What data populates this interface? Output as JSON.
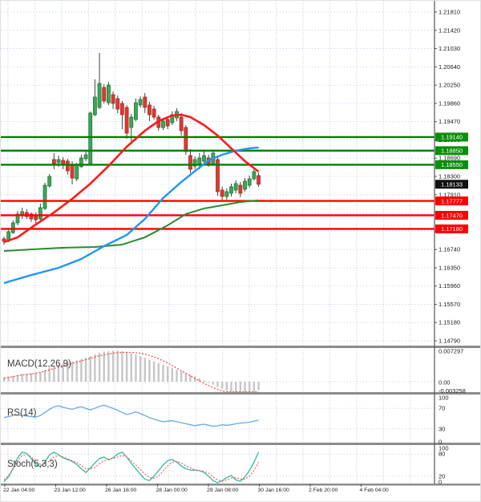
{
  "chart_data": {
    "type": "candlestick",
    "description": "Forex 4h candlestick chart with support/resistance levels, 3 moving averages and MACD / RSI / Stochastic sub-panels",
    "x_axis": {
      "labels": [
        "22 Jan 04:00",
        "23 Jan 12:00",
        "26 Jan 16:00",
        "28 Jan 00:00",
        "29 Jan 08:00",
        "30 Jan 16:00",
        "2 Feb 20:00",
        "4 Feb 04:00"
      ]
    },
    "main_panel": {
      "y_ticks": [
        "1.21810",
        "1.21420",
        "1.21030",
        "1.20640",
        "1.20250",
        "1.19860",
        "1.19470",
        "1.19080",
        "1.18690",
        "1.18300",
        "1.17910",
        "1.17520",
        "1.17130",
        "1.16740",
        "1.16350",
        "1.15960",
        "1.15570",
        "1.15180",
        "1.14790"
      ],
      "price_max": 1.2181,
      "price_min": 1.1479,
      "resistance_levels": [
        "1.19140",
        "1.18850",
        "1.18550"
      ],
      "support_levels": [
        "1.17777",
        "1.17470",
        "1.17180"
      ],
      "last_price": "1.18133",
      "candles_ohlc": [
        [
          1.16965,
          1.17017,
          1.16845,
          1.16914
        ],
        [
          1.16931,
          1.17154,
          1.16897,
          1.17119
        ],
        [
          1.17102,
          1.17359,
          1.17068,
          1.17308
        ],
        [
          1.17308,
          1.17564,
          1.17256,
          1.17496
        ],
        [
          1.17461,
          1.17633,
          1.17393,
          1.17547
        ],
        [
          1.1753,
          1.17598,
          1.17393,
          1.17444
        ],
        [
          1.17496,
          1.1753,
          1.17325,
          1.17393
        ],
        [
          1.17444,
          1.1753,
          1.17291,
          1.17376
        ],
        [
          1.17393,
          1.17718,
          1.17359,
          1.17633
        ],
        [
          1.17616,
          1.18163,
          1.17581,
          1.18112
        ],
        [
          1.18095,
          1.18352,
          1.18061,
          1.183
        ],
        [
          1.1866,
          1.18797,
          1.18454,
          1.18574
        ],
        [
          1.18591,
          1.18745,
          1.18506,
          1.1866
        ],
        [
          1.18643,
          1.18711,
          1.18454,
          1.18557
        ],
        [
          1.18626,
          1.18677,
          1.18335,
          1.1842
        ],
        [
          1.1854,
          1.18626,
          1.18129,
          1.18266
        ],
        [
          1.18249,
          1.18591,
          1.18198,
          1.1854
        ],
        [
          1.18506,
          1.18762,
          1.18489,
          1.18694
        ],
        [
          1.18677,
          1.18831,
          1.18626,
          1.18762
        ],
        [
          1.18574,
          1.19687,
          1.18557,
          1.19653
        ],
        [
          1.19618,
          1.20371,
          1.19584,
          1.19995
        ],
        [
          1.19773,
          1.20937,
          1.19739,
          1.20286
        ],
        [
          1.202,
          1.20269,
          1.19858,
          1.1991
        ],
        [
          1.19875,
          1.2032,
          1.19824,
          1.20252
        ],
        [
          1.20046,
          1.20115,
          1.19738,
          1.19858
        ],
        [
          1.19961,
          1.20029,
          1.19653,
          1.19738
        ],
        [
          1.19858,
          1.1991,
          1.1931,
          1.19618
        ],
        [
          1.19773,
          1.19824,
          1.19105,
          1.19225
        ],
        [
          1.19345,
          1.19636,
          1.19054,
          1.19567
        ],
        [
          1.19516,
          1.19961,
          1.19482,
          1.19875
        ],
        [
          1.19824,
          1.20012,
          1.19773,
          1.19944
        ],
        [
          1.19995,
          1.20081,
          1.19653,
          1.19773
        ],
        [
          1.19824,
          1.19892,
          1.19482,
          1.19618
        ],
        [
          1.19738,
          1.19807,
          1.19516,
          1.19567
        ],
        [
          1.19567,
          1.19618,
          1.19276,
          1.19345
        ],
        [
          1.19345,
          1.1955,
          1.19293,
          1.19482
        ],
        [
          1.19516,
          1.19584,
          1.1931,
          1.19379
        ],
        [
          1.19447,
          1.19687,
          1.19396,
          1.19618
        ],
        [
          1.1955,
          1.19756,
          1.19482,
          1.19687
        ],
        [
          1.19567,
          1.19653,
          1.19173,
          1.19276
        ],
        [
          1.19345,
          1.19396,
          1.18762,
          1.18831
        ],
        [
          1.18745,
          1.18882,
          1.18369,
          1.18454
        ],
        [
          1.18523,
          1.18728,
          1.18454,
          1.1866
        ],
        [
          1.18557,
          1.18797,
          1.18454,
          1.18694
        ],
        [
          1.18626,
          1.18865,
          1.18557,
          1.18745
        ],
        [
          1.18694,
          1.18762,
          1.18506,
          1.18574
        ],
        [
          1.18574,
          1.18865,
          1.18523,
          1.18797
        ],
        [
          1.1866,
          1.18728,
          1.17889,
          1.17975
        ],
        [
          1.18009,
          1.18078,
          1.1777,
          1.17872
        ],
        [
          1.17872,
          1.18044,
          1.17804,
          1.17975
        ],
        [
          1.17941,
          1.18146,
          1.17872,
          1.18078
        ],
        [
          1.18009,
          1.18215,
          1.17941,
          1.18146
        ],
        [
          1.18112,
          1.18181,
          1.17855,
          1.17941
        ],
        [
          1.18026,
          1.18266,
          1.17975,
          1.18198
        ],
        [
          1.18112,
          1.18318,
          1.18061,
          1.18249
        ],
        [
          1.18249,
          1.18489,
          1.18215,
          1.18403
        ],
        [
          1.18318,
          1.18386,
          1.18078,
          1.18133
        ]
      ],
      "ma_red_keypoints": [
        [
          0,
          1.16897
        ],
        [
          3,
          1.17
        ],
        [
          7,
          1.17273
        ],
        [
          11,
          1.1753
        ],
        [
          15,
          1.17821
        ],
        [
          19,
          1.18146
        ],
        [
          23,
          1.18523
        ],
        [
          27,
          1.18934
        ],
        [
          31,
          1.19276
        ],
        [
          34,
          1.19482
        ],
        [
          37,
          1.19601
        ],
        [
          39,
          1.19618
        ],
        [
          41,
          1.19567
        ],
        [
          44,
          1.19396
        ],
        [
          47,
          1.19173
        ],
        [
          50,
          1.18899
        ],
        [
          53,
          1.18626
        ],
        [
          56,
          1.18403
        ]
      ],
      "ma_blue_keypoints": [
        [
          0,
          1.16023
        ],
        [
          6,
          1.16194
        ],
        [
          12,
          1.16348
        ],
        [
          17,
          1.16537
        ],
        [
          22,
          1.16811
        ],
        [
          27,
          1.1705
        ],
        [
          31,
          1.17393
        ],
        [
          35,
          1.17838
        ],
        [
          39,
          1.18181
        ],
        [
          43,
          1.18489
        ],
        [
          45,
          1.18643
        ],
        [
          48,
          1.18763
        ],
        [
          51,
          1.18848
        ],
        [
          54,
          1.189
        ],
        [
          56,
          1.18917
        ]
      ],
      "ma_green_keypoints": [
        [
          0,
          1.16708
        ],
        [
          6,
          1.16742
        ],
        [
          13,
          1.16777
        ],
        [
          20,
          1.16794
        ],
        [
          26,
          1.16845
        ],
        [
          31,
          1.17
        ],
        [
          36,
          1.17256
        ],
        [
          40,
          1.17496
        ],
        [
          44,
          1.17616
        ],
        [
          49,
          1.17701
        ],
        [
          52,
          1.17753
        ],
        [
          56,
          1.1779
        ]
      ]
    },
    "macd_panel": {
      "label": "MACD(12,26,9)",
      "axis_labels": [
        "0.007297",
        "0.00",
        "-0.003258"
      ],
      "histogram": [
        0.001,
        0.0012,
        0.0014,
        0.0016,
        0.0018,
        0.0019,
        0.002,
        0.0021,
        0.0023,
        0.0027,
        0.0032,
        0.0036,
        0.004,
        0.0043,
        0.0046,
        0.0048,
        0.005,
        0.0053,
        0.0056,
        0.006,
        0.0064,
        0.0068,
        0.0071,
        0.0072,
        0.0073,
        0.0073,
        0.0072,
        0.007,
        0.0067,
        0.0064,
        0.006,
        0.0056,
        0.0052,
        0.0048,
        0.0044,
        0.004,
        0.0036,
        0.0032,
        0.0028,
        0.0024,
        0.002,
        0.0016,
        0.0012,
        0.0008,
        0.0003,
        -0.0002,
        -0.0007,
        -0.0012,
        -0.0016,
        -0.002,
        -0.0023,
        -0.0025,
        -0.0026,
        -0.0026,
        -0.0025,
        -0.0023,
        -0.002
      ],
      "signal": [
        0.0008,
        0.001,
        0.0012,
        0.0014,
        0.0016,
        0.0017,
        0.0018,
        0.002,
        0.0022,
        0.0025,
        0.0028,
        0.0031,
        0.0034,
        0.0037,
        0.004,
        0.0043,
        0.0046,
        0.0049,
        0.0052,
        0.0055,
        0.0058,
        0.0061,
        0.0063,
        0.0065,
        0.0067,
        0.0068,
        0.0069,
        0.0069,
        0.0069,
        0.0068,
        0.0067,
        0.0065,
        0.0062,
        0.0058,
        0.0054,
        0.0049,
        0.0044,
        0.0038,
        0.0032,
        0.0026,
        0.002,
        0.0014,
        0.0008,
        0.0002,
        -0.0004,
        -0.0009,
        -0.0014,
        -0.0018,
        -0.0022,
        -0.0025,
        -0.0027,
        -0.0028,
        -0.0029,
        -0.0029,
        -0.0029,
        -0.0028,
        -0.0028
      ]
    },
    "rsi_panel": {
      "label": "RS(14)",
      "axis_labels": [
        "100",
        "70",
        "30",
        "0"
      ],
      "guide_levels": [
        70,
        30
      ],
      "values": [
        52,
        54,
        56,
        57,
        56,
        55,
        54,
        53,
        56,
        62,
        68,
        73,
        75,
        72,
        70,
        68,
        71,
        73,
        70,
        67,
        70,
        74,
        76,
        73,
        70,
        66,
        62,
        58,
        60,
        63,
        60,
        56,
        52,
        49,
        46,
        44,
        45,
        46,
        44,
        42,
        40,
        38,
        36,
        38,
        39,
        37,
        35,
        36,
        38,
        37,
        38,
        40,
        41,
        42,
        43,
        45,
        47
      ]
    },
    "stoch_panel": {
      "label": "Stoch(5,3,3)",
      "axis_labels": [
        "100",
        "80",
        "20",
        "0"
      ],
      "guide_levels": [
        80,
        20
      ],
      "k": [
        5,
        18,
        42,
        70,
        85,
        82,
        68,
        52,
        46,
        58,
        78,
        85,
        78,
        70,
        65,
        60,
        52,
        40,
        30,
        42,
        56,
        68,
        72,
        64,
        70,
        80,
        85,
        72,
        55,
        40,
        25,
        12,
        8,
        20,
        35,
        50,
        62,
        65,
        58,
        48,
        40,
        37,
        36,
        35,
        30,
        20,
        8,
        2,
        8,
        16,
        22,
        10,
        6,
        18,
        35,
        58,
        85
      ],
      "d": [
        10,
        22,
        40,
        62,
        76,
        80,
        72,
        60,
        52,
        52,
        62,
        72,
        76,
        72,
        67,
        62,
        57,
        49,
        40,
        40,
        44,
        54,
        62,
        66,
        68,
        72,
        76,
        72,
        62,
        50,
        38,
        26,
        16,
        14,
        20,
        34,
        48,
        58,
        60,
        56,
        48,
        42,
        38,
        35,
        33,
        28,
        18,
        10,
        6,
        10,
        15,
        16,
        12,
        12,
        20,
        36,
        58
      ]
    },
    "colors": {
      "candle_up": "#3fa558",
      "candle_up_border": "#1e7a3a",
      "candle_down": "#dd3b33",
      "candle_down_border": "#a32b22",
      "wick": "#444444",
      "resistance_line": "#008000",
      "support_line": "#ff0000",
      "ma_red": "#ff1a1a",
      "ma_blue": "#2196f3",
      "ma_green": "#2e8b2e",
      "macd_bar": "#c6c6c6",
      "macd_signal": "#ff4040",
      "rsi_line": "#6aa9e8",
      "stoch_k": "#35b8a8",
      "stoch_d": "#ff5050",
      "grid": "#b9cdec",
      "separator": "#8c8c8c",
      "badge_resistance_bg": "#0a8f0a",
      "badge_support_bg": "#ff0000",
      "badge_last_bg": "#111111",
      "axis_text": "#1a1a1a"
    }
  }
}
